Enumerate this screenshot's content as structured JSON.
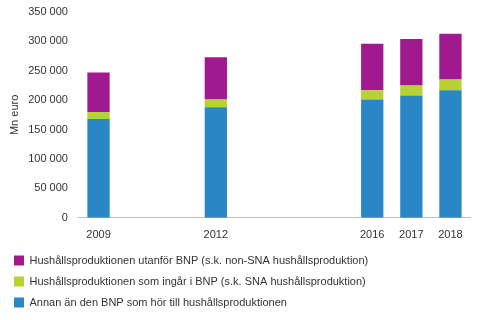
{
  "chart_data": {
    "type": "bar",
    "stacked": true,
    "grid": false,
    "legend": "bottom",
    "ylabel": "Mn euro",
    "categories": [
      "2009",
      null,
      null,
      "2012",
      null,
      null,
      null,
      "2016",
      "2017",
      "2018"
    ],
    "series": [
      {
        "name": "Annan än den BNP som hör till hushållsproduktionen",
        "color": "#2b86c5",
        "values": [
          168000,
          null,
          null,
          188000,
          null,
          null,
          null,
          201000,
          208000,
          217000
        ]
      },
      {
        "name": "Hushållsproduktionen som ingår i BNP (s.k. SNA hushållsproduktion)",
        "color": "#b6d333",
        "values": [
          12000,
          null,
          null,
          13000,
          null,
          null,
          null,
          16000,
          17000,
          18000
        ]
      },
      {
        "name": "Hushållsproduktionen utanför BNP (s.k. non-SNA hushållsproduktion)",
        "color": "#a0198e",
        "values": [
          67000,
          null,
          null,
          72000,
          null,
          null,
          null,
          79000,
          79000,
          78000
        ]
      }
    ],
    "ylim": [
      0,
      350000
    ],
    "yticks": [
      0,
      {
        "value": 50000,
        "label": "50 000"
      },
      {
        "value": 100000,
        "label": "100 000"
      },
      {
        "value": 150000,
        "label": "150 000"
      },
      {
        "value": 200000,
        "label": "200 000"
      },
      {
        "value": 250000,
        "label": "250 000"
      },
      {
        "value": 300000,
        "label": "300 000"
      },
      {
        "value": 350000,
        "label": "350 000"
      }
    ]
  }
}
